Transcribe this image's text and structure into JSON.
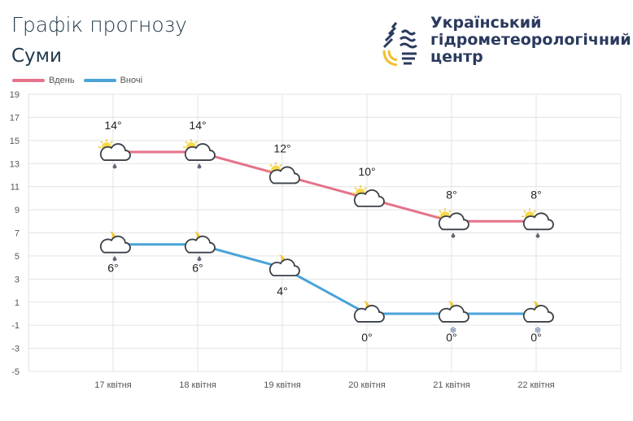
{
  "header": {
    "title": "Графік прогнозу",
    "city": "Суми",
    "org_lines": [
      "Український",
      "гідрометеорологічний",
      "центр"
    ]
  },
  "chart_data": {
    "type": "line",
    "categories": [
      "17 квітня",
      "18 квітня",
      "19 квітня",
      "20 квітня",
      "21 квітня",
      "22 квітня"
    ],
    "series": [
      {
        "name": "Вдень",
        "color": "#e5728a",
        "values": [
          14,
          14,
          12,
          10,
          8,
          8
        ],
        "labels": [
          "14°",
          "14°",
          "12°",
          "10°",
          "8°",
          "8°"
        ],
        "icons": [
          "sun-cloud-rain",
          "sun-cloud-rain",
          "sun-cloud",
          "sun-cloud",
          "sun-cloud-rain",
          "sun-cloud-rain"
        ]
      },
      {
        "name": "Вночі",
        "color": "#4aa3d8",
        "values": [
          6,
          6,
          4,
          0,
          0,
          0
        ],
        "labels": [
          "6°",
          "6°",
          "4°",
          "0°",
          "0°",
          "0°"
        ],
        "icons": [
          "moon-cloud-rain",
          "moon-cloud-rain",
          "moon-cloud",
          "moon-cloud",
          "moon-cloud-snow",
          "moon-cloud-snow"
        ]
      }
    ],
    "yticks": [
      "19",
      "17",
      "15",
      "13",
      "11",
      "9",
      "7",
      "5",
      "3",
      "1",
      "-1",
      "-3",
      "-5"
    ],
    "ylim": [
      -5,
      19
    ],
    "grid": true,
    "legend": "top-left"
  }
}
